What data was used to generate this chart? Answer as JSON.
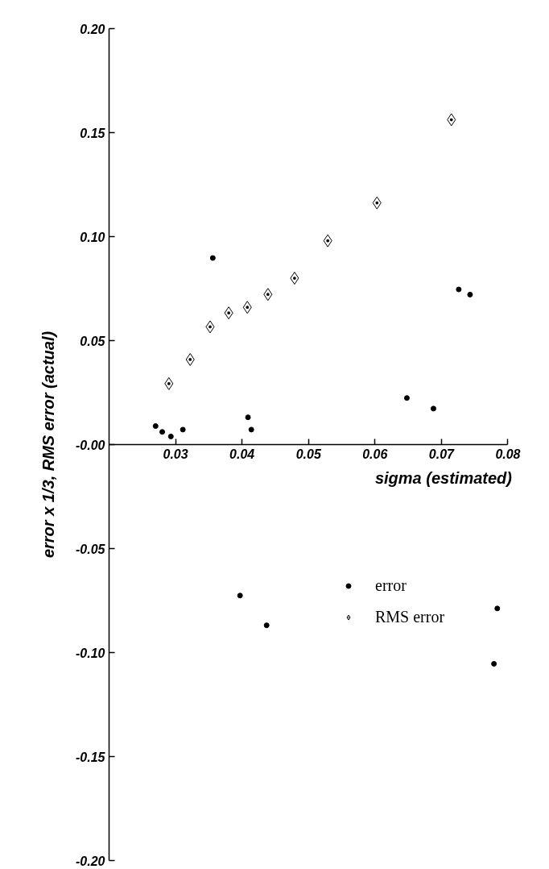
{
  "chart_data": {
    "type": "scatter",
    "xlabel": "sigma (estimated)",
    "ylabel": "error x 1/3, RMS error (actual)",
    "xlim": [
      0.02,
      0.08
    ],
    "xticks": [
      0.03,
      0.04,
      0.05,
      0.06,
      0.07,
      0.08
    ],
    "ylim": [
      -0.2,
      0.2
    ],
    "yticks": [
      {
        "value": -0.2,
        "label": "-0.20"
      },
      {
        "value": -0.15,
        "label": "-0.15"
      },
      {
        "value": -0.1,
        "label": "-0.10"
      },
      {
        "value": -0.05,
        "label": "-0.05"
      },
      {
        "value": 0,
        "label": "-0.00"
      },
      {
        "value": 0.05,
        "label": "0.05"
      },
      {
        "value": 0.1,
        "label": "0.10"
      },
      {
        "value": 0.15,
        "label": "0.15"
      },
      {
        "value": 0.2,
        "label": "0.20"
      }
    ],
    "grid": false,
    "legend": "bottom right",
    "series": [
      {
        "name": "error",
        "color": "#000000",
        "marker": "circle",
        "x": [
          0.027,
          0.028,
          0.0311,
          0.0293,
          0.0409,
          0.0414,
          0.0648,
          0.0688,
          0.0726,
          0.0743,
          0.0356,
          0.0397,
          0.0437,
          0.0784,
          0.0779
        ],
        "values": [
          0.0089,
          0.0061,
          0.0072,
          0.0039,
          0.0131,
          0.0072,
          0.0224,
          0.0173,
          0.0746,
          0.0721,
          0.0897,
          -0.0726,
          -0.0869,
          -0.0788,
          -0.1054
        ]
      },
      {
        "name": "RMS error",
        "color": "#000000",
        "marker": "diamond",
        "x": [
          0.029,
          0.0322,
          0.0352,
          0.038,
          0.0408,
          0.0439,
          0.0479,
          0.0529,
          0.0603,
          0.0715
        ],
        "values": [
          0.0293,
          0.0409,
          0.0566,
          0.0633,
          0.066,
          0.0722,
          0.08,
          0.098,
          0.1162,
          0.1562
        ]
      }
    ]
  }
}
